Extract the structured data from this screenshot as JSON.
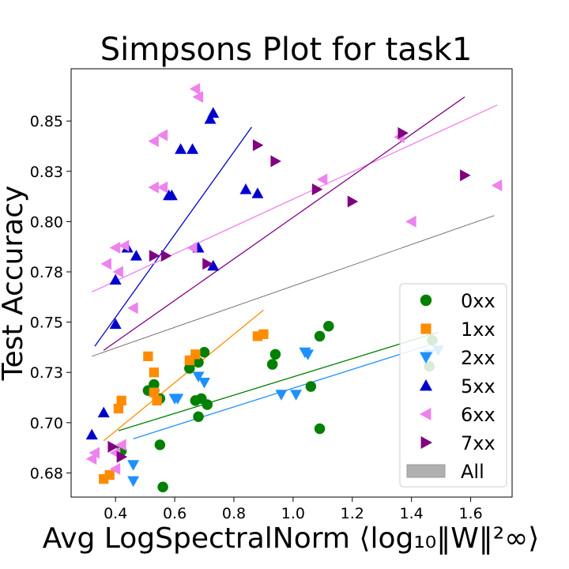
{
  "chart_data": {
    "type": "scatter",
    "title": "Simpsons Plot for task1",
    "xlabel": "Avg LogSpectralNorm ⟨log₁₀‖W‖²∞⟩",
    "ylabel": "Test Accuracy",
    "xlim": [
      0.25,
      1.74
    ],
    "ylim": [
      0.663,
      0.876
    ],
    "xticks": [
      0.4,
      0.6,
      0.8,
      1.0,
      1.2,
      1.4,
      1.6
    ],
    "xtick_labels": [
      "0.4",
      "0.6",
      "0.8",
      "1.0",
      "1.2",
      "1.4",
      "1.6"
    ],
    "yticks": [
      0.675,
      0.7,
      0.725,
      0.75,
      0.775,
      0.8,
      0.825,
      0.85
    ],
    "ytick_labels": [
      "0.68",
      "0.70",
      "0.73",
      "0.75",
      "0.78",
      "0.80",
      "0.83",
      "0.85"
    ],
    "grid": false,
    "legend_position": "lower-right",
    "series": [
      {
        "name": "0xx",
        "marker": "circle",
        "color": "#008000",
        "points": [
          [
            0.42,
            0.686
          ],
          [
            0.55,
            0.689
          ],
          [
            0.56,
            0.668
          ],
          [
            0.51,
            0.716
          ],
          [
            0.53,
            0.719
          ],
          [
            0.53,
            0.716
          ],
          [
            0.55,
            0.712
          ],
          [
            0.65,
            0.727
          ],
          [
            0.68,
            0.73
          ],
          [
            0.7,
            0.735
          ],
          [
            0.67,
            0.711
          ],
          [
            0.69,
            0.712
          ],
          [
            0.71,
            0.709
          ],
          [
            0.68,
            0.703
          ],
          [
            0.93,
            0.729
          ],
          [
            0.94,
            0.734
          ],
          [
            1.06,
            0.718
          ],
          [
            1.09,
            0.743
          ],
          [
            1.12,
            0.748
          ],
          [
            1.09,
            0.697
          ],
          [
            1.46,
            0.728
          ],
          [
            1.47,
            0.741
          ]
        ],
        "fit": [
          [
            0.41,
            0.696
          ],
          [
            1.49,
            0.745
          ]
        ]
      },
      {
        "name": "1xx",
        "marker": "square",
        "color": "#ff8c00",
        "points": [
          [
            0.36,
            0.672
          ],
          [
            0.38,
            0.674
          ],
          [
            0.41,
            0.707
          ],
          [
            0.42,
            0.711
          ],
          [
            0.51,
            0.733
          ],
          [
            0.53,
            0.725
          ],
          [
            0.53,
            0.715
          ],
          [
            0.54,
            0.711
          ],
          [
            0.65,
            0.731
          ],
          [
            0.67,
            0.734
          ],
          [
            0.88,
            0.743
          ],
          [
            0.9,
            0.744
          ]
        ],
        "fit": [
          [
            0.36,
            0.691
          ],
          [
            0.9,
            0.756
          ]
        ]
      },
      {
        "name": "2xx",
        "marker": "triangle-down",
        "color": "#1e90ff",
        "points": [
          [
            0.46,
            0.679
          ],
          [
            0.46,
            0.671
          ],
          [
            0.6,
            0.712
          ],
          [
            0.61,
            0.712
          ],
          [
            0.68,
            0.723
          ],
          [
            0.7,
            0.72
          ],
          [
            0.96,
            0.714
          ],
          [
            1.01,
            0.714
          ],
          [
            1.04,
            0.735
          ],
          [
            1.05,
            0.734
          ],
          [
            1.46,
            0.734
          ],
          [
            1.49,
            0.736
          ]
        ],
        "fit": [
          [
            0.46,
            0.692
          ],
          [
            1.49,
            0.74
          ]
        ]
      },
      {
        "name": "5xx",
        "marker": "triangle-up",
        "color": "#0000cd",
        "points": [
          [
            0.32,
            0.694
          ],
          [
            0.36,
            0.705
          ],
          [
            0.4,
            0.749
          ],
          [
            0.4,
            0.771
          ],
          [
            0.44,
            0.787
          ],
          [
            0.47,
            0.783
          ],
          [
            0.58,
            0.813
          ],
          [
            0.59,
            0.813
          ],
          [
            0.62,
            0.836
          ],
          [
            0.66,
            0.836
          ],
          [
            0.68,
            0.787
          ],
          [
            0.73,
            0.778
          ],
          [
            0.72,
            0.851
          ],
          [
            0.73,
            0.854
          ],
          [
            0.84,
            0.816
          ],
          [
            0.88,
            0.814
          ]
        ],
        "fit": [
          [
            0.33,
            0.738
          ],
          [
            0.86,
            0.847
          ]
        ]
      },
      {
        "name": "6xx",
        "marker": "triangle-left",
        "color": "#ee82ee",
        "points": [
          [
            0.32,
            0.682
          ],
          [
            0.33,
            0.685
          ],
          [
            0.4,
            0.685
          ],
          [
            0.42,
            0.689
          ],
          [
            0.4,
            0.677
          ],
          [
            0.37,
            0.779
          ],
          [
            0.41,
            0.775
          ],
          [
            0.4,
            0.787
          ],
          [
            0.43,
            0.788
          ],
          [
            0.46,
            0.757
          ],
          [
            0.53,
            0.817
          ],
          [
            0.56,
            0.817
          ],
          [
            0.53,
            0.84
          ],
          [
            0.56,
            0.843
          ],
          [
            0.66,
            0.787
          ],
          [
            0.67,
            0.866
          ],
          [
            0.68,
            0.862
          ],
          [
            1.1,
            0.821
          ],
          [
            1.36,
            0.842
          ],
          [
            1.4,
            0.8
          ],
          [
            1.69,
            0.818
          ]
        ],
        "fit": [
          [
            0.32,
            0.765
          ],
          [
            1.69,
            0.858
          ]
        ]
      },
      {
        "name": "7xx",
        "marker": "triangle-right",
        "color": "#800080",
        "points": [
          [
            0.42,
            0.683
          ],
          [
            0.39,
            0.688
          ],
          [
            0.53,
            0.783
          ],
          [
            0.57,
            0.783
          ],
          [
            0.71,
            0.779
          ],
          [
            0.88,
            0.838
          ],
          [
            0.94,
            0.83
          ],
          [
            1.08,
            0.816
          ],
          [
            1.2,
            0.81
          ],
          [
            1.37,
            0.844
          ],
          [
            1.58,
            0.823
          ]
        ],
        "fit": [
          [
            0.36,
            0.736
          ],
          [
            1.58,
            0.862
          ]
        ]
      },
      {
        "name": "All",
        "marker": "patch",
        "color": "#b0b0b0",
        "points": [],
        "fit": [
          [
            0.32,
            0.733
          ],
          [
            1.68,
            0.803
          ]
        ]
      }
    ]
  }
}
